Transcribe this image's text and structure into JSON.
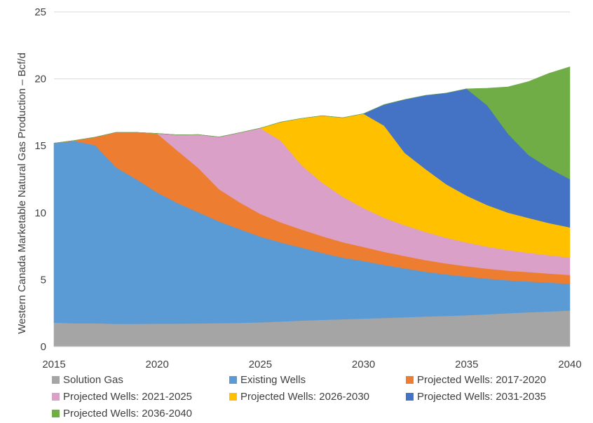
{
  "chart_data": {
    "type": "area",
    "stacked": true,
    "title": "",
    "xlabel": "",
    "ylabel": "Western Canada Marketable Natural Gas Production – Bcf/d",
    "xlim": [
      2015,
      2040
    ],
    "ylim": [
      0,
      25
    ],
    "x_ticks": [
      "2015",
      "2020",
      "2025",
      "2030",
      "2035",
      "2040"
    ],
    "y_ticks": [
      "0",
      "5",
      "10",
      "15",
      "20",
      "25"
    ],
    "x": [
      2015,
      2016,
      2017,
      2018,
      2019,
      2020,
      2021,
      2022,
      2023,
      2024,
      2025,
      2026,
      2027,
      2028,
      2029,
      2030,
      2031,
      2032,
      2033,
      2034,
      2035,
      2036,
      2037,
      2038,
      2039,
      2040
    ],
    "series": [
      {
        "name": "Solution Gas",
        "color": "#a5a5a5",
        "values": [
          1.8,
          1.75,
          1.75,
          1.7,
          1.7,
          1.72,
          1.72,
          1.74,
          1.76,
          1.78,
          1.82,
          1.88,
          1.95,
          2.0,
          2.05,
          2.1,
          2.15,
          2.2,
          2.25,
          2.3,
          2.35,
          2.42,
          2.5,
          2.57,
          2.63,
          2.7
        ]
      },
      {
        "name": "Existing Wells",
        "color": "#5b9bd5",
        "values": [
          13.4,
          13.6,
          13.3,
          11.7,
          10.8,
          9.8,
          9.0,
          8.3,
          7.6,
          7.0,
          6.4,
          5.9,
          5.45,
          5.0,
          4.6,
          4.3,
          3.95,
          3.65,
          3.35,
          3.1,
          2.88,
          2.66,
          2.46,
          2.3,
          2.15,
          2.0
        ]
      },
      {
        "name": "Projected Wells: 2017-2020",
        "color": "#ed7d31",
        "values": [
          0,
          0.05,
          0.6,
          2.6,
          3.5,
          4.4,
          3.9,
          3.3,
          2.4,
          2.0,
          1.7,
          1.5,
          1.35,
          1.25,
          1.15,
          1.05,
          0.98,
          0.92,
          0.87,
          0.82,
          0.78,
          0.75,
          0.72,
          0.7,
          0.68,
          0.66
        ]
      },
      {
        "name": "Projected Wells: 2021-2025",
        "color": "#dba0c7",
        "values": [
          0,
          0,
          0,
          0,
          0,
          0,
          1.2,
          2.5,
          3.9,
          5.2,
          6.4,
          6.1,
          4.8,
          4.0,
          3.4,
          2.9,
          2.55,
          2.3,
          2.1,
          1.92,
          1.77,
          1.64,
          1.53,
          1.44,
          1.37,
          1.3
        ]
      },
      {
        "name": "Projected Wells: 2026-2030",
        "color": "#ffc000",
        "values": [
          0,
          0,
          0,
          0,
          0,
          0,
          0,
          0,
          0,
          0,
          0,
          1.4,
          3.5,
          5.0,
          5.9,
          7.05,
          6.88,
          5.4,
          4.7,
          4.0,
          3.5,
          3.1,
          2.8,
          2.6,
          2.4,
          2.25
        ]
      },
      {
        "name": "Projected Wells: 2031-2035",
        "color": "#4472c4",
        "values": [
          0,
          0,
          0,
          0,
          0,
          0,
          0,
          0,
          0,
          0,
          0,
          0,
          0,
          0,
          0,
          0,
          1.57,
          3.99,
          5.5,
          6.8,
          7.98,
          7.45,
          5.9,
          4.7,
          4.1,
          3.6
        ]
      },
      {
        "name": "Projected Wells: 2036-2040",
        "color": "#70ad47",
        "values": [
          0,
          0,
          0,
          0,
          0,
          0,
          0,
          0,
          0,
          0,
          0,
          0,
          0,
          0,
          0,
          0,
          0,
          0,
          0,
          0,
          0,
          1.28,
          3.49,
          5.49,
          7.09,
          8.39
        ]
      }
    ]
  }
}
